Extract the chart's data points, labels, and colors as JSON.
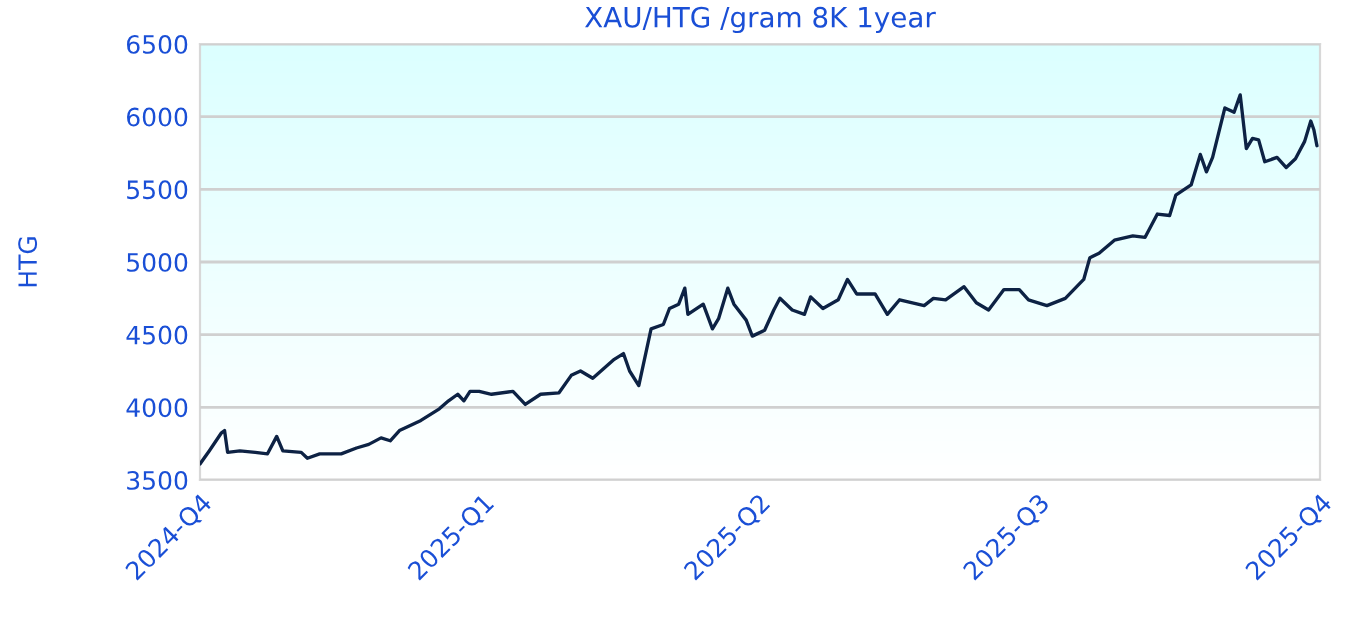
{
  "chart_data": {
    "type": "line",
    "title": "XAU/HTG /gram 8K 1year",
    "ylabel": "HTG",
    "xlim": [
      "2024-10-01",
      "2025-10-01"
    ],
    "xticks": [
      {
        "value": "2024-10-01",
        "label": "2024-Q4"
      },
      {
        "value": "2025-01-01",
        "label": "2025-Q1"
      },
      {
        "value": "2025-04-01",
        "label": "2025-Q2"
      },
      {
        "value": "2025-07-01",
        "label": "2025-Q3"
      },
      {
        "value": "2025-10-01",
        "label": "2025-Q4"
      }
    ],
    "ylim": [
      3500,
      6500
    ],
    "yticks": [
      3500,
      4000,
      4500,
      5000,
      5500,
      6000,
      6500
    ],
    "grid": "y",
    "marker": "none",
    "line_style": "solid",
    "series": [
      {
        "color": "#0d2244",
        "x": [
          "2024-10-01",
          "2024-10-04",
          "2024-10-08",
          "2024-10-09",
          "2024-10-10",
          "2024-10-14",
          "2024-10-19",
          "2024-10-23",
          "2024-10-26",
          "2024-10-28",
          "2024-11-03",
          "2024-11-05",
          "2024-11-09",
          "2024-11-16",
          "2024-11-21",
          "2024-11-25",
          "2024-11-29",
          "2024-12-02",
          "2024-12-05",
          "2024-12-08",
          "2024-12-12",
          "2024-12-15",
          "2024-12-18",
          "2024-12-21",
          "2024-12-24",
          "2024-12-26",
          "2024-12-28",
          "2024-12-31",
          "2025-01-04",
          "2025-01-11",
          "2025-01-15",
          "2025-01-20",
          "2025-01-26",
          "2025-01-30",
          "2025-02-02",
          "2025-02-06",
          "2025-02-13",
          "2025-02-16",
          "2025-02-18",
          "2025-02-21",
          "2025-02-25",
          "2025-03-01",
          "2025-03-03",
          "2025-03-06",
          "2025-03-08",
          "2025-03-09",
          "2025-03-14",
          "2025-03-17",
          "2025-03-19",
          "2025-03-22",
          "2025-03-24",
          "2025-03-28",
          "2025-03-30",
          "2025-04-03",
          "2025-04-06",
          "2025-04-08",
          "2025-04-12",
          "2025-04-16",
          "2025-04-18",
          "2025-04-22",
          "2025-04-27",
          "2025-04-30",
          "2025-05-03",
          "2025-05-09",
          "2025-05-13",
          "2025-05-17",
          "2025-05-25",
          "2025-05-28",
          "2025-06-01",
          "2025-06-07",
          "2025-06-11",
          "2025-06-15",
          "2025-06-20",
          "2025-06-25",
          "2025-06-28",
          "2025-07-04",
          "2025-07-10",
          "2025-07-16",
          "2025-07-18",
          "2025-07-21",
          "2025-07-26",
          "2025-08-01",
          "2025-08-05",
          "2025-08-09",
          "2025-08-13",
          "2025-08-15",
          "2025-08-20",
          "2025-08-23",
          "2025-08-25",
          "2025-08-27",
          "2025-08-31",
          "2025-09-03",
          "2025-09-05",
          "2025-09-07",
          "2025-09-09",
          "2025-09-11",
          "2025-09-13",
          "2025-09-17",
          "2025-09-20",
          "2025-09-23",
          "2025-09-26",
          "2025-09-28",
          "2025-09-29",
          "2025-09-30"
        ],
        "values": [
          3610,
          3700,
          3825,
          3840,
          3690,
          3700,
          3690,
          3680,
          3800,
          3700,
          3690,
          3650,
          3680,
          3680,
          3720,
          3745,
          3790,
          3770,
          3840,
          3870,
          3910,
          3950,
          3990,
          4045,
          4090,
          4045,
          4110,
          4110,
          4090,
          4110,
          4020,
          4090,
          4100,
          4220,
          4250,
          4200,
          4330,
          4370,
          4250,
          4150,
          4540,
          4570,
          4680,
          4710,
          4820,
          4640,
          4710,
          4540,
          4610,
          4820,
          4710,
          4600,
          4490,
          4530,
          4670,
          4750,
          4670,
          4640,
          4760,
          4680,
          4740,
          4880,
          4780,
          4780,
          4640,
          4740,
          4700,
          4750,
          4740,
          4830,
          4720,
          4670,
          4810,
          4810,
          4740,
          4700,
          4750,
          4880,
          5030,
          5060,
          5150,
          5180,
          5170,
          5330,
          5320,
          5460,
          5530,
          5740,
          5620,
          5720,
          6060,
          6030,
          6150,
          5780,
          5850,
          5840,
          5690,
          5720,
          5650,
          5710,
          5830,
          5970,
          5910,
          5800
        ]
      }
    ]
  }
}
